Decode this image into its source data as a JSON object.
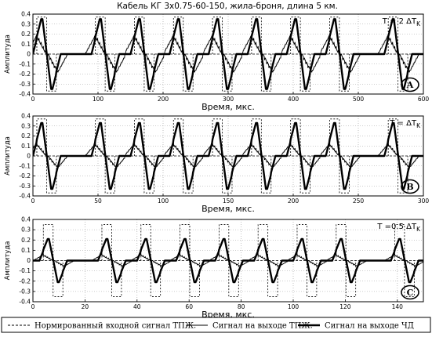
{
  "chart_data": {
    "title": "Кабель КГ 3х0.75-60-150, жила-броня, длина 5 км.",
    "legend": [
      {
        "name": "Нормированный входной сигнал ТПЖ.",
        "style": "dashed"
      },
      {
        "name": "Сигнал на выходе ТПЖ.",
        "style": "thin"
      },
      {
        "name": "Сигнал на выходе ЧД",
        "style": "thick"
      }
    ],
    "panels": [
      {
        "type": "line",
        "label": "A",
        "t_prefix": "T = 2",
        "t_delta": "ΔT",
        "t_sub": "K",
        "xlabel": "Время,  мкс.",
        "ylabel": "Амплитуда",
        "xlim": [
          0,
          600
        ],
        "ylim": [
          -0.4,
          0.4
        ],
        "xticks": [
          "0",
          "100",
          "200",
          "300",
          "400",
          "500",
          "600"
        ],
        "yticks": [
          "-0.4",
          "-0.3",
          "-0.2",
          "-0.1",
          "0",
          "0.1",
          "0.2",
          "0.3",
          "0.4"
        ],
        "baseline_ch": 0.35,
        "input_amplitude": 0.37,
        "ch_amplitude": 0.35,
        "tpzh_amplitude": 0.2,
        "bits": [
          1,
          0,
          0,
          1,
          0,
          1,
          0,
          1,
          0,
          1,
          0,
          1,
          0,
          1,
          0,
          1,
          0,
          0,
          1,
          0
        ],
        "bit_width_us": 30,
        "start_us": 6,
        "axis_tail_us": 12
      },
      {
        "type": "line",
        "label": "B",
        "t_prefix": "T =",
        "t_delta": "ΔT",
        "t_sub": "K",
        "xlabel": "Время,  мкс.",
        "ylabel": "Амплитуда",
        "xlim": [
          0,
          300
        ],
        "ylim": [
          -0.4,
          0.4
        ],
        "xticks": [
          "0",
          "50",
          "100",
          "150",
          "200",
          "250",
          "300"
        ],
        "yticks": [
          "-0.4",
          "-0.3",
          "-0.2",
          "-0.1",
          "0",
          "0.1",
          "0.2",
          "0.3",
          "0.4"
        ],
        "baseline_ch": 0.35,
        "input_amplitude": 0.37,
        "ch_amplitude": 0.33,
        "tpzh_amplitude": 0.13,
        "bits": [
          1,
          0,
          0,
          1,
          0,
          1,
          0,
          1,
          0,
          1,
          0,
          1,
          0,
          1,
          0,
          1,
          0,
          0,
          1,
          0
        ],
        "bit_width_us": 15,
        "start_us": 3,
        "axis_tail_us": 8
      },
      {
        "type": "line",
        "label": "C",
        "t_prefix": "T =0.5",
        "t_delta": "ΔT",
        "t_sub": "K",
        "xlabel": "Время,  мкс.",
        "ylabel": "Амплитуда",
        "xlim": [
          0,
          150
        ],
        "ylim": [
          -0.4,
          0.4
        ],
        "xticks": [
          "0",
          "20",
          "40",
          "60",
          "80",
          "100",
          "120",
          "140"
        ],
        "yticks": [
          "-0.4",
          "-0.3",
          "-0.2",
          "-0.1",
          "0",
          "0.1",
          "0.2",
          "0.3",
          "0.4"
        ],
        "baseline_ch": 0.21,
        "input_amplitude": 0.35,
        "ch_amplitude": 0.21,
        "tpzh_amplitude": 0.06,
        "bits": [
          1,
          0,
          0,
          1,
          0,
          1,
          0,
          1,
          0,
          1,
          0,
          1,
          0,
          1,
          0,
          1,
          0,
          0,
          1,
          0
        ],
        "bit_width_us": 7.5,
        "start_us": 4,
        "axis_tail_us": 3
      }
    ]
  }
}
